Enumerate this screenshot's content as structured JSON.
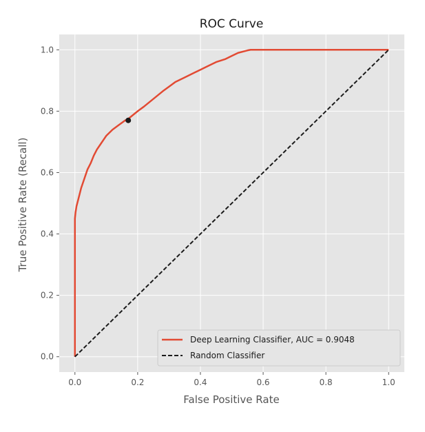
{
  "chart_data": {
    "type": "line",
    "title": "ROC Curve",
    "xlabel": "False Positive Rate",
    "ylabel": "True Positive Rate (Recall)",
    "xlim": [
      -0.05,
      1.05
    ],
    "ylim": [
      -0.05,
      1.05
    ],
    "grid": true,
    "legend_position": "lower-right",
    "x_ticks": [
      0.0,
      0.2,
      0.4,
      0.6,
      0.8,
      1.0
    ],
    "y_ticks": [
      0.0,
      0.2,
      0.4,
      0.6,
      0.8,
      1.0
    ],
    "x_tick_labels": [
      "0.0",
      "0.2",
      "0.4",
      "0.6",
      "0.8",
      "1.0"
    ],
    "y_tick_labels": [
      "0.0",
      "0.2",
      "0.4",
      "0.6",
      "0.8",
      "1.0"
    ],
    "series": [
      {
        "name": "Deep Learning Classifier, AUC = 0.9048",
        "color": "#e24a33",
        "style": "solid",
        "x": [
          0.0,
          0.0,
          0.002,
          0.005,
          0.01,
          0.015,
          0.02,
          0.03,
          0.04,
          0.05,
          0.06,
          0.07,
          0.08,
          0.09,
          0.1,
          0.12,
          0.14,
          0.16,
          0.17,
          0.2,
          0.22,
          0.25,
          0.28,
          0.3,
          0.32,
          0.35,
          0.38,
          0.4,
          0.42,
          0.45,
          0.48,
          0.5,
          0.52,
          0.55,
          0.56,
          0.58,
          0.6,
          0.8,
          1.0
        ],
        "y": [
          0.0,
          0.45,
          0.47,
          0.49,
          0.51,
          0.53,
          0.55,
          0.58,
          0.61,
          0.63,
          0.655,
          0.675,
          0.69,
          0.705,
          0.72,
          0.74,
          0.755,
          0.77,
          0.775,
          0.8,
          0.815,
          0.84,
          0.865,
          0.88,
          0.895,
          0.91,
          0.925,
          0.935,
          0.945,
          0.96,
          0.97,
          0.98,
          0.99,
          0.998,
          1.0,
          1.0,
          1.0,
          1.0,
          1.0
        ]
      },
      {
        "name": "Random Classifier",
        "color": "#1a1a1a",
        "style": "dashed",
        "x": [
          0.0,
          1.0
        ],
        "y": [
          0.0,
          1.0
        ]
      }
    ],
    "marker_point": {
      "x": 0.17,
      "y": 0.77,
      "color": "#1a1a1a"
    },
    "background_color": "#e5e5e5",
    "grid_color": "#ffffff"
  }
}
